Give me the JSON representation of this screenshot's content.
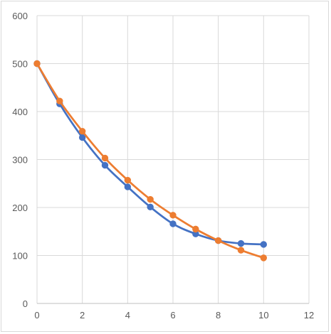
{
  "chart_data": {
    "type": "scatter",
    "title": "",
    "xlabel": "",
    "ylabel": "",
    "xlim": [
      0,
      12
    ],
    "ylim": [
      0,
      600
    ],
    "x_ticks": [
      0,
      2,
      4,
      6,
      8,
      10,
      12
    ],
    "y_ticks": [
      0,
      100,
      200,
      300,
      400,
      500,
      600
    ],
    "grid": true,
    "legend": false,
    "series": [
      {
        "color": "#4472C4",
        "x": [
          0,
          1,
          2,
          3,
          4,
          5,
          6,
          7,
          8,
          9,
          10
        ],
        "y": [
          500,
          416,
          346,
          288,
          243,
          201,
          166,
          145,
          131,
          125,
          123
        ]
      },
      {
        "color": "#ED7D31",
        "x": [
          0,
          1,
          2,
          3,
          4,
          5,
          6,
          7,
          8,
          9,
          10
        ],
        "y": [
          500,
          422,
          359,
          303,
          257,
          217,
          184,
          155,
          131,
          111,
          95
        ]
      }
    ]
  }
}
